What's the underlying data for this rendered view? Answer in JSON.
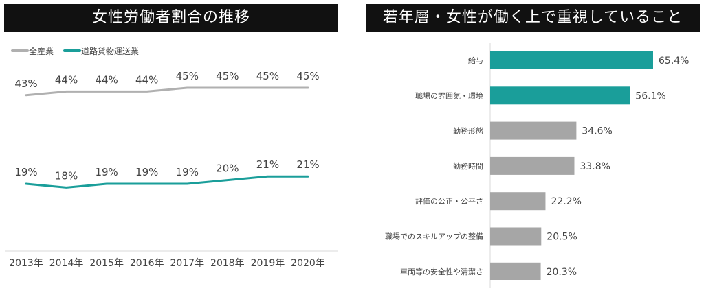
{
  "left": {
    "title": "女性労働者割合の推移",
    "colors": {
      "all": "#b0b0b0",
      "road": "#1a9e9a"
    },
    "chart_data": {
      "type": "line",
      "x": [
        "2013年",
        "2014年",
        "2015年",
        "2016年",
        "2017年",
        "2018年",
        "2019年",
        "2020年"
      ],
      "series": [
        {
          "name": "全産業",
          "values": [
            43,
            44,
            44,
            44,
            45,
            45,
            45,
            45
          ],
          "labels": [
            "43%",
            "44%",
            "44%",
            "44%",
            "45%",
            "45%",
            "45%",
            "45%"
          ]
        },
        {
          "name": "道路貨物運送業",
          "values": [
            19,
            18,
            19,
            19,
            19,
            20,
            21,
            21
          ],
          "labels": [
            "19%",
            "18%",
            "19%",
            "19%",
            "19%",
            "20%",
            "21%",
            "21%"
          ]
        }
      ],
      "legend": "top-left",
      "grid": false
    }
  },
  "right": {
    "title": "若年層・女性が働く上で重視していること",
    "colors": {
      "highlight": "#1a9e9a",
      "normal": "#a6a6a6"
    },
    "chart_data": {
      "type": "bar",
      "orientation": "horizontal",
      "categories": [
        "給与",
        "職場の雰囲気・環境",
        "勤務形態",
        "勤務時間",
        "評価の公正・公平さ",
        "職場でのスキルアップの整備",
        "車両等の安全性や清潔さ"
      ],
      "values": [
        65.4,
        56.1,
        34.6,
        33.8,
        22.2,
        20.5,
        20.3
      ],
      "labels": [
        "65.4%",
        "56.1%",
        "34.6%",
        "33.8%",
        "22.2%",
        "20.5%",
        "20.3%"
      ],
      "highlighted": [
        true,
        true,
        false,
        false,
        false,
        false,
        false
      ],
      "grid": false
    }
  }
}
